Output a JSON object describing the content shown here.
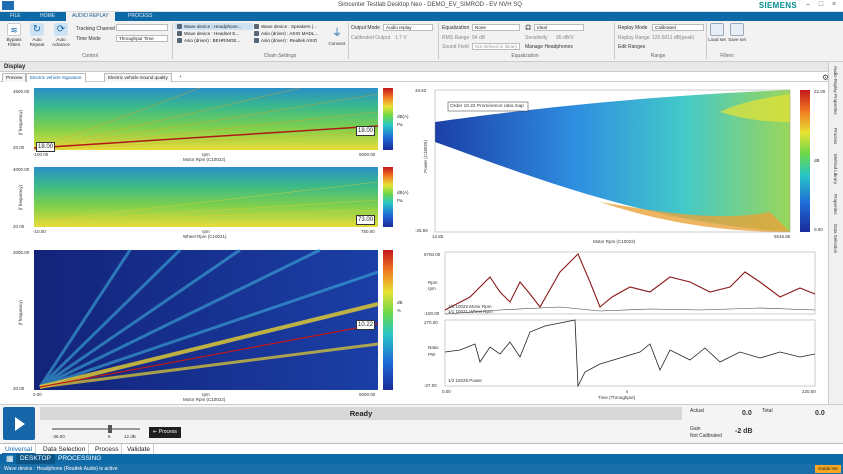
{
  "window": {
    "title": "Simcenter Testlab Desktop Neo - DEMO_EV_SIMROD - EV NVH SQ",
    "brand": "SIEMENS"
  },
  "menu_tabs": [
    "FILE",
    "HOME",
    "AUDIO REPLAY",
    "PROCESS"
  ],
  "ribbon": {
    "control": {
      "label": "Control",
      "bypass": "Bypass Filters",
      "auto_repeat": "Auto Repeat",
      "auto_advance": "Auto Advance",
      "tracking_label": "Tracking Channel",
      "time_mode_label": "Time Mode",
      "time_mode_value": "Throughput Time"
    },
    "chain": {
      "label": "Chain Settings",
      "channels": [
        "Wave device : Headphone...",
        "Wave device : Headset E...",
        "Asio (driver) : BEHRINGE...",
        "Wave device : Speakers (...",
        "Asio (driver) : ASIO MADL...",
        "Asio (driver) : Realtek ASIO"
      ],
      "connect": "Connect"
    },
    "output": {
      "mode_label": "Output Mode",
      "mode_value": "Audio replay",
      "calib_label": "Calibrated Output",
      "calib_value": "1.7 V"
    },
    "equalization": {
      "label": "Equalization",
      "eq_label": "Equalization",
      "eq_value": "None",
      "rms_label": "RMS Range",
      "rms_value": "94 dB",
      "sf_label": "Sound Field",
      "sf_value": "Not defined in library",
      "ideal": "Ideal",
      "sens_label": "Sensitivity",
      "sens_value": "95 dB/V",
      "manage": "Manage Headphones"
    },
    "range": {
      "label": "Range",
      "mode_label": "Replay Mode",
      "mode_value": "Calibrated",
      "rr_label": "Replay Range",
      "rr_value": "120.6011 dB(peak)",
      "edit": "Edit Ranges"
    },
    "filters": {
      "label": "Filters",
      "load": "Load set",
      "save": "Save set"
    }
  },
  "display": {
    "title": "Display",
    "tabs": [
      "Preview",
      "Electric vehicle Signature",
      "Electric vehicle Sound quality"
    ],
    "add": "+"
  },
  "side_tabs": [
    "Audio Replay Properties",
    "Process",
    "Method Library",
    "Properties",
    "Data Selection"
  ],
  "plots": {
    "p1": {
      "ylabel": "(f frequency)",
      "yunit": "Hz",
      "ytop": "4500.00",
      "ybot": "20.00",
      "xl": "-100.00",
      "xr": "5000.00",
      "xlabel": "rpm",
      "xtitle": "Motor Rpm (C10022)",
      "cursor_l": "18.00",
      "cursor_r": "18.00",
      "cbar_labels": [
        "dB(A)",
        "Pa"
      ]
    },
    "p2": {
      "ylabel": "(f frequency)",
      "yunit": "Hz",
      "ytop": "4000.00",
      "ybot": "20.00",
      "xl": "-10.00",
      "xr": "750.00",
      "xlabel": "rpm",
      "xtitle": "Wheel Rpm (C10021)",
      "cursor_r": "73.00",
      "cbar_labels": [
        "dB(A)",
        "Pa"
      ]
    },
    "p3": {
      "ylabel": "(f frequency)",
      "yunit": "Hz",
      "ytop": "2000.00",
      "ybot": "20.00",
      "xl": "0.00",
      "xr": "5000.00",
      "xlabel": "rpm",
      "xtitle": "Motor Rpm (C10022)",
      "cursor_r": "10.22",
      "cbar_labels": [
        "dB",
        "%"
      ]
    },
    "p4": {
      "title": "Order 10.22  Prominence ratio map",
      "ylabel": "Power (C16025)",
      "yunit": "kW",
      "ytop": "33.62",
      "ybot": "-25.59",
      "xl": "12.85",
      "xr": "5516.85",
      "xtitle": "Motor Rpm (C10022)",
      "cbar_top": "22.00",
      "cbar_bot": "0.00",
      "cbar_unit": "dB"
    },
    "p5": {
      "ytop": "5700.00",
      "ybot": "-100.00",
      "yunit": "Rpm",
      "ylabel": "rpm",
      "legend": "1/1    10022.Motor Rpm",
      "legend2": "1/1    10021.Wheel Rpm",
      "btop": "270.00",
      "bbot": "-27.00",
      "bunit": "Ratio",
      "blabel": "PW",
      "blegend": "1/2    16025.Power",
      "xl": "0.00",
      "xr": "220.00",
      "xtitle": "Time (Throughput)",
      "xunit": "s"
    }
  },
  "replay": {
    "status": "Ready",
    "slider_min": "-36.00",
    "slider_mid": "6",
    "slider_val": "12 dB",
    "process": "Process",
    "actual_label": "Actual",
    "actual_value": "0.0",
    "total_label": "Total",
    "total_value": "0.0",
    "gain_label": "Gain",
    "gain_sub": "Not Calibrated",
    "gain_value": "-2 dB"
  },
  "bottom_tabs": [
    "Universal",
    "Data Selection",
    "Process",
    "Validate"
  ],
  "desktop_tabs": [
    "DESKTOP",
    "PROCESSING"
  ],
  "statusbar": {
    "text": "Wave device : Headphone (Realtek Audio) is active",
    "guide": "Guide me"
  }
}
